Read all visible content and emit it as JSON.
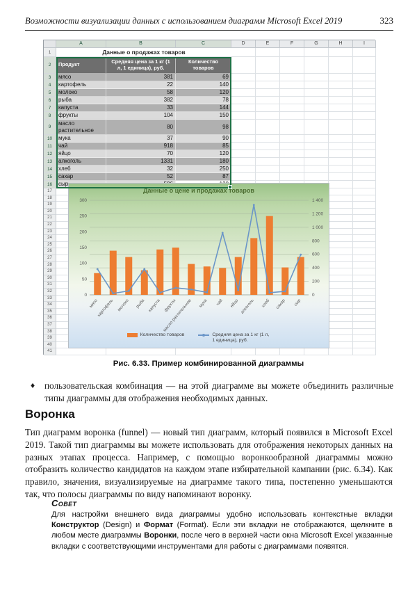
{
  "header": {
    "title": "Возможности визуализации данных с использованием диаграмм Microsoft Excel 2019",
    "page_number": "323"
  },
  "spreadsheet": {
    "columns": [
      "A",
      "B",
      "C",
      "D",
      "E",
      "F",
      "G",
      "H",
      "I"
    ],
    "row_count": 41,
    "title_cell": "Данные о продажах товаров",
    "table": {
      "headers": [
        "Продукт",
        "Средняя цена за 1 кг (1 л, 1 единица), руб.",
        "Количество товаров"
      ],
      "rows": [
        {
          "product": "мясо",
          "price": "381",
          "qty": "69"
        },
        {
          "product": "картофель",
          "price": "22",
          "qty": "140"
        },
        {
          "product": "молоко",
          "price": "58",
          "qty": "120"
        },
        {
          "product": "рыба",
          "price": "382",
          "qty": "78"
        },
        {
          "product": "капуста",
          "price": "33",
          "qty": "144"
        },
        {
          "product": "фрукты",
          "price": "104",
          "qty": "150"
        },
        {
          "product": "масло растительное",
          "price": "80",
          "qty": "98"
        },
        {
          "product": "мука",
          "price": "37",
          "qty": "90"
        },
        {
          "product": "чай",
          "price": "918",
          "qty": "85"
        },
        {
          "product": "яйцо",
          "price": "70",
          "qty": "120"
        },
        {
          "product": "алкоголь",
          "price": "1331",
          "qty": "180"
        },
        {
          "product": "хлеб",
          "price": "32",
          "qty": "250"
        },
        {
          "product": "сахар",
          "price": "52",
          "qty": "87"
        },
        {
          "product": "сыр",
          "price": "596",
          "qty": "120"
        }
      ]
    },
    "selection": {
      "range": "A2:C16",
      "border_color": "#1e7145",
      "active_cell": "C16"
    }
  },
  "chart_data": {
    "type": "bar",
    "subtype": "combo-bar-line",
    "title": "Данные о цене и продажах товаров",
    "categories": [
      "мясо",
      "картофель",
      "молоко",
      "рыба",
      "капуста",
      "фрукты",
      "масло растительное",
      "мука",
      "чай",
      "яйцо",
      "алкоголь",
      "хлеб",
      "сахар",
      "сыр"
    ],
    "series": [
      {
        "name": "Количество товаров",
        "type": "bar",
        "axis": "left",
        "color": "#ED7D31",
        "values": [
          69,
          140,
          120,
          78,
          144,
          150,
          98,
          90,
          85,
          120,
          180,
          250,
          87,
          120
        ]
      },
      {
        "name": "Средняя цена за 1 кг (1 л, 1 единица), руб.",
        "type": "line",
        "axis": "right",
        "color": "#6B96C8",
        "values": [
          381,
          22,
          58,
          382,
          33,
          104,
          80,
          37,
          918,
          70,
          1331,
          32,
          52,
          596
        ]
      }
    ],
    "left_axis": {
      "min": 0,
      "max": 300,
      "step": 50
    },
    "right_axis": {
      "min": 0,
      "max": 1400,
      "step": 200
    },
    "grid": true,
    "legend_position": "bottom"
  },
  "figure": {
    "caption": "Рис. 6.33. Пример комбинированной диаграммы"
  },
  "content": {
    "bullet": {
      "marker": "♦",
      "text": "пользовательская комбинация — на этой диаграмме вы можете объединить различные типы диаграммы для отображения необходимых данных."
    },
    "section_heading": "Воронка",
    "paragraph": "Тип диаграмм воронка (funnel) — новый тип диаграмм, который появился в Microsoft Excel 2019. Такой тип диаграммы вы можете использовать для отображения некоторых данных на разных этапах процесса. Например, с помощью воронкообразной диаграммы можно отобразить количество кандидатов на каждом этапе избирательной кампании (рис. 6.34). Как правило, значения, визуализируемые на диаграмме такого типа, постепенно уменьшаются так, что полосы диаграммы по виду напоминают воронку.",
    "tip": {
      "label": "Совет",
      "segments": [
        {
          "text": "Для настройки внешнего вида диаграммы удобно использовать контекстные вкладки ",
          "bold": false
        },
        {
          "text": "Конструктор",
          "bold": true
        },
        {
          "text": " (Design) и ",
          "bold": false
        },
        {
          "text": "Формат",
          "bold": true
        },
        {
          "text": " (Format). Если эти вкладки не отображаются, щелкните в любом месте диаграммы ",
          "bold": false
        },
        {
          "text": "Воронки",
          "bold": true
        },
        {
          "text": ", после чего в верхней части окна Microsoft Excel указанные вкладки с соответствующими инструментами для работы с диаграммами появятся.",
          "bold": false
        }
      ]
    }
  }
}
